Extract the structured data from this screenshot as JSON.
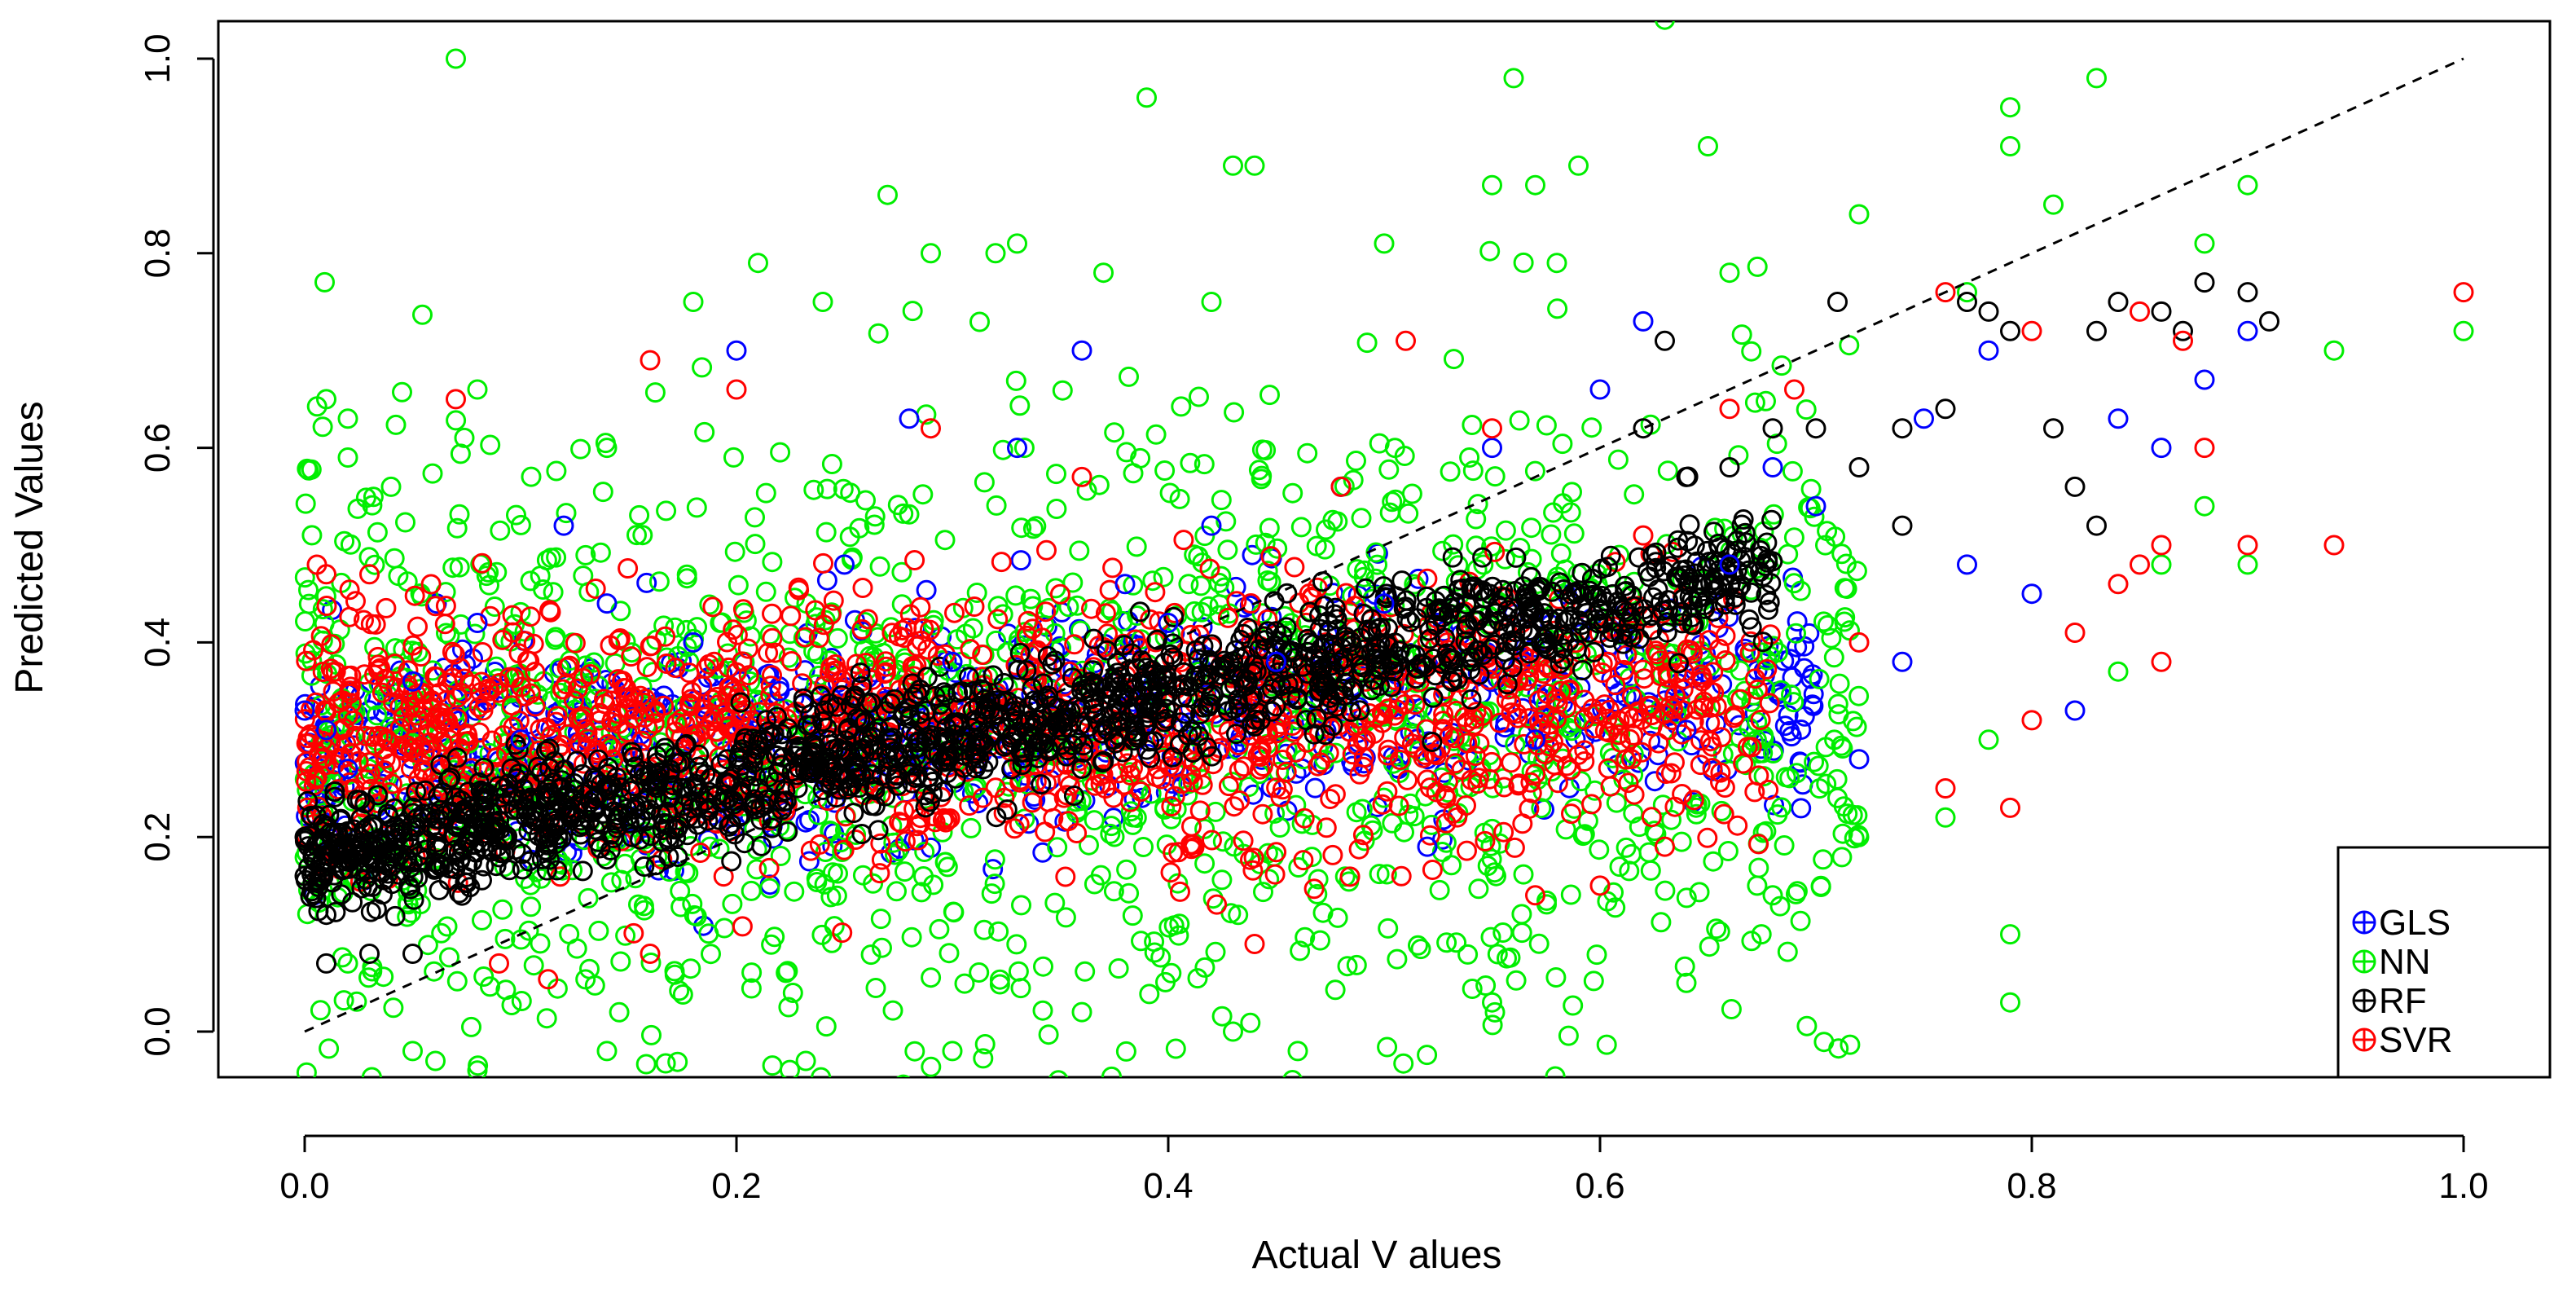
{
  "chart_data": {
    "type": "scatter",
    "title": "",
    "xlabel": "Actual V alues",
    "ylabel": "Predicted Values",
    "xlim": [
      -0.1,
      1.05
    ],
    "ylim": [
      -0.04,
      1.04
    ],
    "x_ticks": [
      "0.0",
      "0.2",
      "0.4",
      "0.6",
      "0.8",
      "1.0"
    ],
    "x_tick_values": [
      0.0,
      0.2,
      0.4,
      0.6,
      0.8,
      1.0
    ],
    "y_ticks": [
      "0.0",
      "0.2",
      "0.4",
      "0.6",
      "0.8",
      "1.0"
    ],
    "y_tick_values": [
      0.0,
      0.2,
      0.4,
      0.6,
      0.8,
      1.0
    ],
    "grid": false,
    "legend_position": "bottom-right",
    "reference_line": {
      "style": "dashed",
      "from": [
        0.0,
        0.0
      ],
      "to": [
        1.0,
        1.0
      ]
    },
    "series": [
      {
        "name": "GLS",
        "color": "#0000ff",
        "points": [
          [
            0.0,
            0.33
          ],
          [
            0.01,
            0.31
          ],
          [
            0.02,
            0.27
          ],
          [
            0.05,
            0.36
          ],
          [
            0.08,
            0.42
          ],
          [
            0.1,
            0.3
          ],
          [
            0.12,
            0.52
          ],
          [
            0.14,
            0.44
          ],
          [
            0.18,
            0.4
          ],
          [
            0.2,
            0.7
          ],
          [
            0.22,
            0.35
          ],
          [
            0.25,
            0.48
          ],
          [
            0.28,
            0.63
          ],
          [
            0.3,
            0.38
          ],
          [
            0.33,
            0.6
          ],
          [
            0.36,
            0.7
          ],
          [
            0.38,
            0.46
          ],
          [
            0.4,
            0.42
          ],
          [
            0.42,
            0.52
          ],
          [
            0.45,
            0.38
          ],
          [
            0.48,
            0.56
          ],
          [
            0.5,
            0.44
          ],
          [
            0.52,
            0.19
          ],
          [
            0.55,
            0.6
          ],
          [
            0.57,
            0.3
          ],
          [
            0.6,
            0.66
          ],
          [
            0.62,
            0.73
          ],
          [
            0.64,
            0.31
          ],
          [
            0.66,
            0.48
          ],
          [
            0.68,
            0.58
          ],
          [
            0.7,
            0.54
          ],
          [
            0.72,
            0.28
          ],
          [
            0.74,
            0.38
          ],
          [
            0.75,
            0.63
          ],
          [
            0.77,
            0.48
          ],
          [
            0.78,
            0.7
          ],
          [
            0.8,
            0.45
          ],
          [
            0.82,
            0.33
          ],
          [
            0.84,
            0.63
          ],
          [
            0.86,
            0.6
          ],
          [
            0.88,
            0.67
          ],
          [
            0.9,
            0.72
          ]
        ]
      },
      {
        "name": "NN",
        "color": "#00ee00",
        "points": [
          [
            0.07,
            1.0
          ],
          [
            0.39,
            0.96
          ],
          [
            0.56,
            0.98
          ],
          [
            0.63,
            1.04
          ],
          [
            0.83,
            0.98
          ],
          [
            0.79,
            0.95
          ],
          [
            0.43,
            0.89
          ],
          [
            0.44,
            0.89
          ],
          [
            0.57,
            0.87
          ],
          [
            0.55,
            0.87
          ],
          [
            0.59,
            0.89
          ],
          [
            0.65,
            0.91
          ],
          [
            0.79,
            0.91
          ],
          [
            0.9,
            0.87
          ],
          [
            0.27,
            0.86
          ],
          [
            0.72,
            0.84
          ],
          [
            0.81,
            0.85
          ],
          [
            0.33,
            0.81
          ],
          [
            0.32,
            0.8
          ],
          [
            0.29,
            0.8
          ],
          [
            0.5,
            0.81
          ],
          [
            0.88,
            0.81
          ],
          [
            0.21,
            0.79
          ],
          [
            0.37,
            0.78
          ],
          [
            0.58,
            0.79
          ],
          [
            0.66,
            0.78
          ],
          [
            0.77,
            0.76
          ],
          [
            0.42,
            0.75
          ],
          [
            0.18,
            0.75
          ],
          [
            0.24,
            0.75
          ],
          [
            0.94,
            0.7
          ],
          [
            1.0,
            0.72
          ],
          [
            0.01,
            0.65
          ],
          [
            0.02,
            0.63
          ],
          [
            0.08,
            0.66
          ],
          [
            0.02,
            0.59
          ],
          [
            0.04,
            0.56
          ],
          [
            0.14,
            0.6
          ],
          [
            0.02,
            0.07
          ],
          [
            0.05,
            -0.02
          ],
          [
            0.08,
            -0.04
          ],
          [
            0.14,
            -0.02
          ],
          [
            0.3,
            -0.02
          ],
          [
            0.36,
            0.02
          ],
          [
            0.43,
            0.0
          ],
          [
            0.46,
            -0.02
          ],
          [
            0.55,
            0.03
          ],
          [
            0.64,
            0.05
          ],
          [
            0.79,
            0.1
          ],
          [
            0.79,
            0.03
          ],
          [
            0.86,
            0.48
          ],
          [
            0.9,
            0.48
          ],
          [
            0.88,
            0.54
          ],
          [
            0.71,
            0.24
          ],
          [
            0.72,
            0.2
          ],
          [
            0.68,
            0.14
          ],
          [
            0.76,
            0.22
          ],
          [
            0.78,
            0.3
          ],
          [
            0.84,
            0.37
          ]
        ]
      },
      {
        "name": "RF",
        "color": "#000000",
        "points": [
          [
            0.77,
            0.75
          ],
          [
            0.78,
            0.74
          ],
          [
            0.84,
            0.75
          ],
          [
            0.86,
            0.74
          ],
          [
            0.88,
            0.77
          ],
          [
            0.9,
            0.76
          ],
          [
            0.91,
            0.73
          ],
          [
            0.87,
            0.72
          ],
          [
            0.83,
            0.72
          ],
          [
            0.79,
            0.72
          ],
          [
            0.81,
            0.62
          ],
          [
            0.82,
            0.56
          ],
          [
            0.83,
            0.52
          ],
          [
            0.71,
            0.75
          ],
          [
            0.63,
            0.71
          ],
          [
            0.76,
            0.64
          ],
          [
            0.74,
            0.62
          ],
          [
            0.7,
            0.62
          ],
          [
            0.68,
            0.62
          ],
          [
            0.66,
            0.58
          ],
          [
            0.62,
            0.62
          ],
          [
            0.64,
            0.57
          ],
          [
            0.72,
            0.58
          ],
          [
            0.74,
            0.52
          ],
          [
            0.0,
            0.16
          ],
          [
            0.01,
            0.12
          ],
          [
            0.01,
            0.07
          ],
          [
            0.03,
            0.08
          ],
          [
            0.05,
            0.08
          ],
          [
            0.0,
            0.2
          ],
          [
            0.02,
            0.2
          ]
        ]
      },
      {
        "name": "SVR",
        "color": "#ff0000",
        "points": [
          [
            1.0,
            0.76
          ],
          [
            0.94,
            0.5
          ],
          [
            0.9,
            0.5
          ],
          [
            0.88,
            0.6
          ],
          [
            0.86,
            0.5
          ],
          [
            0.85,
            0.48
          ],
          [
            0.86,
            0.38
          ],
          [
            0.84,
            0.46
          ],
          [
            0.82,
            0.41
          ],
          [
            0.79,
            0.23
          ],
          [
            0.8,
            0.32
          ],
          [
            0.76,
            0.25
          ],
          [
            0.76,
            0.76
          ],
          [
            0.72,
            0.4
          ],
          [
            0.69,
            0.66
          ],
          [
            0.66,
            0.64
          ],
          [
            0.62,
            0.51
          ],
          [
            0.63,
            0.19
          ],
          [
            0.6,
            0.15
          ],
          [
            0.57,
            0.14
          ],
          [
            0.51,
            0.71
          ],
          [
            0.16,
            0.69
          ],
          [
            0.07,
            0.65
          ],
          [
            0.2,
            0.66
          ],
          [
            0.29,
            0.62
          ],
          [
            0.36,
            0.57
          ],
          [
            0.03,
            0.47
          ],
          [
            0.01,
            0.47
          ],
          [
            0.44,
            0.09
          ],
          [
            0.09,
            0.07
          ],
          [
            0.16,
            0.08
          ],
          [
            0.48,
            0.56
          ],
          [
            0.55,
            0.62
          ],
          [
            0.85,
            0.74
          ],
          [
            0.87,
            0.71
          ],
          [
            0.8,
            0.72
          ]
        ]
      }
    ],
    "clouds": [
      {
        "series": "GLS",
        "n": 700,
        "x_range": [
          0.0,
          0.7
        ],
        "intercept": 0.28,
        "slope": 0.12,
        "spread": 0.06
      },
      {
        "series": "NN",
        "n": 1500,
        "x_range": [
          0.0,
          0.72
        ],
        "intercept": 0.28,
        "slope": 0.1,
        "spread": 0.16
      },
      {
        "series": "SVR",
        "n": 1400,
        "x_range": [
          0.0,
          0.68
        ],
        "intercept": 0.3,
        "slope": 0.05,
        "spread": 0.065
      },
      {
        "series": "RF",
        "n": 1600,
        "x_range": [
          0.0,
          0.68
        ],
        "intercept": 0.17,
        "slope": 0.45,
        "spread": 0.03
      }
    ]
  }
}
